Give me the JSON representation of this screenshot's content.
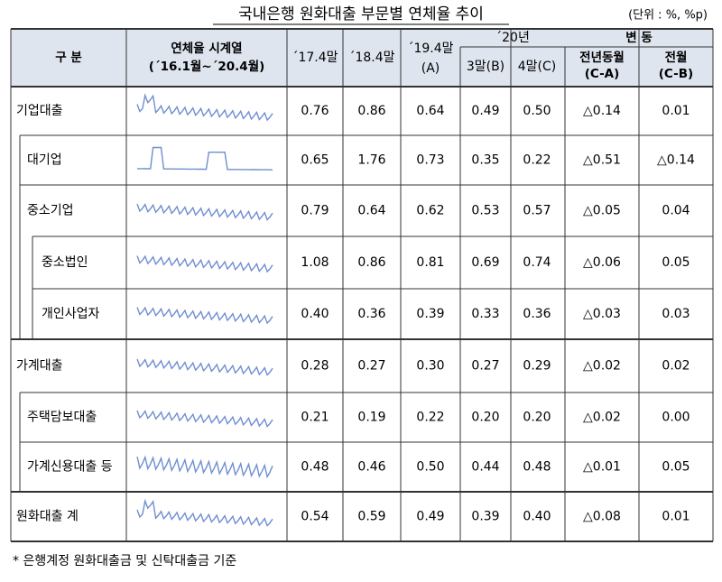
{
  "header": {
    "title": "국내은행 원화대출 부문별 연체율 추이",
    "unit": "(단위 : %, %p)"
  },
  "table": {
    "head": {
      "division": "구 분",
      "series_title": "연체율 시계열",
      "series_range": "(´16.1월~´20.4월)",
      "c17": "´17.4말",
      "c18": "´18.4말",
      "c19": "´19.4말",
      "c19_sub": "(A)",
      "y20": "´20년",
      "m3": "3말(B)",
      "m4": "4말(C)",
      "change": "변 동",
      "yoy": "전년동월",
      "yoy_sub": "(C-A)",
      "mom": "전월",
      "mom_sub": "(C-B)"
    },
    "rows": [
      [
        "기업대출",
        "0.76",
        "0.86",
        "0.64",
        "0.49",
        "0.50",
        "△0.14",
        "0.01"
      ],
      [
        "대기업",
        "0.65",
        "1.76",
        "0.73",
        "0.35",
        "0.22",
        "△0.51",
        "△0.14"
      ],
      [
        "중소기업",
        "0.79",
        "0.64",
        "0.62",
        "0.53",
        "0.57",
        "△0.05",
        "0.04"
      ],
      [
        "중소법인",
        "1.08",
        "0.86",
        "0.81",
        "0.69",
        "0.74",
        "△0.06",
        "0.05"
      ],
      [
        "개인사업자",
        "0.40",
        "0.36",
        "0.39",
        "0.33",
        "0.36",
        "△0.03",
        "0.03"
      ],
      [
        "가계대출",
        "0.28",
        "0.27",
        "0.30",
        "0.27",
        "0.29",
        "△0.02",
        "0.02"
      ],
      [
        "주택담보대출",
        "0.21",
        "0.19",
        "0.22",
        "0.20",
        "0.20",
        "△0.02",
        "0.00"
      ],
      [
        "가계신용대출 등",
        "0.48",
        "0.46",
        "0.50",
        "0.44",
        "0.48",
        "△0.01",
        "0.05"
      ],
      [
        "원화대출 계",
        "0.54",
        "0.59",
        "0.49",
        "0.39",
        "0.40",
        "△0.08",
        "0.01"
      ]
    ],
    "footnote": "* 은행계정 원화대출금 및 신탁대출금 기준"
  }
}
